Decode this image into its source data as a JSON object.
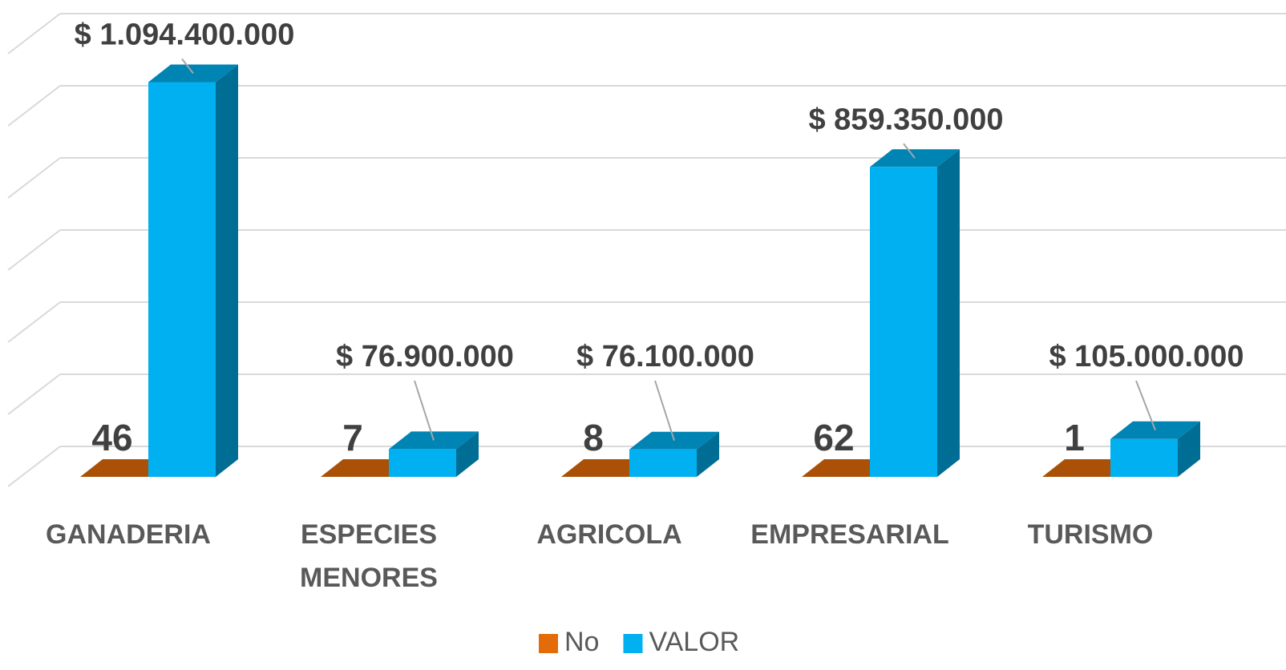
{
  "chart_data": {
    "type": "bar3d",
    "categories": [
      "GANADERIA",
      "ESPECIES MENORES",
      "AGRICOLA",
      "EMPRESARIAL",
      "TURISMO"
    ],
    "series": [
      {
        "name": "No",
        "color": "#e36c09",
        "values": [
          46,
          7,
          8,
          62,
          1
        ]
      },
      {
        "name": "VALOR",
        "color": "#00b0f0",
        "values": [
          1094400000,
          76900000,
          76100000,
          859350000,
          105000000
        ],
        "value_labels": [
          "$ 1.094.400.000",
          "$ 76.900.000",
          "$ 76.100.000",
          "$ 859.350.000",
          "$ 105.000.000"
        ]
      }
    ],
    "ylim": [
      0,
      1200000000
    ],
    "yticks": [
      0,
      200000000,
      400000000,
      600000000,
      800000000,
      1000000000,
      1200000000
    ],
    "grid": true,
    "legend": "bottom"
  }
}
